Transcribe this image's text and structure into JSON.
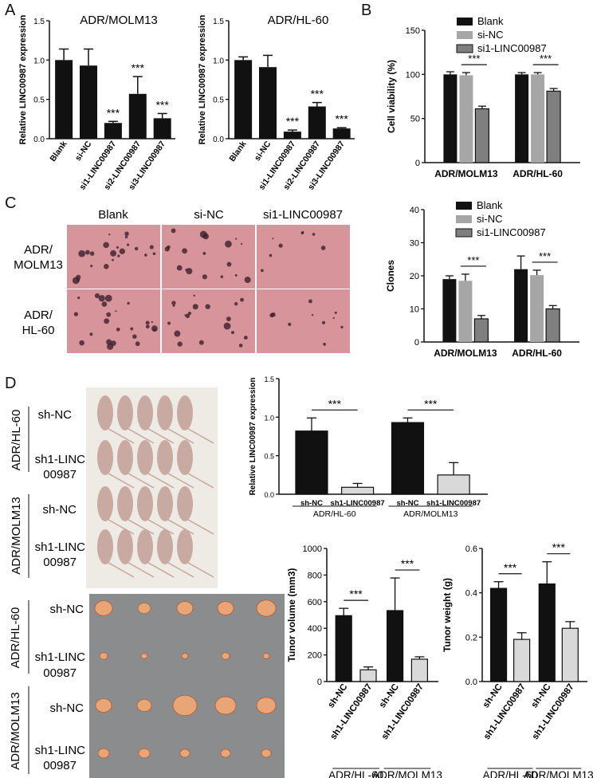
{
  "panels": {
    "A": "A",
    "B": "B",
    "C": "C",
    "D": "D"
  },
  "colors": {
    "black": "#111111",
    "gray": "#a6a6a6",
    "dark_gray": "#7f7f7f",
    "light_gray": "#d9d9d9",
    "petri": "#d7949a",
    "tray": "#8a8c8e",
    "mouse": "#c9aaa3",
    "tumor": "#e8a676"
  },
  "chart_data": [
    {
      "id": "A1",
      "type": "bar",
      "title": "ADR/MOLM13",
      "ylabel": "Relative LINC00987 expression",
      "categories": [
        "Blank",
        "si-NC",
        "si1-LINC00987",
        "si2-LINC00987",
        "si3-LINC00987"
      ],
      "values": [
        1.0,
        0.93,
        0.2,
        0.57,
        0.26
      ],
      "errors": [
        0.14,
        0.21,
        0.02,
        0.22,
        0.06
      ],
      "ylim": [
        0,
        1.5
      ],
      "yticks": [
        "0.0",
        "0.5",
        "1.0",
        "1.5"
      ],
      "annotations": [
        {
          "index": 2,
          "text": "***"
        },
        {
          "index": 3,
          "text": "***"
        },
        {
          "index": 4,
          "text": "***"
        }
      ]
    },
    {
      "id": "A2",
      "type": "bar",
      "title": "ADR/HL-60",
      "ylabel": "Relative LINC00987 expression",
      "categories": [
        "Blank",
        "si-NC",
        "si1-LINC00987",
        "si2-LINC00987",
        "si3-LINC00987"
      ],
      "values": [
        1.0,
        0.91,
        0.09,
        0.41,
        0.13
      ],
      "errors": [
        0.04,
        0.15,
        0.02,
        0.05,
        0.01
      ],
      "ylim": [
        0,
        1.5
      ],
      "yticks": [
        "0.0",
        "0.5",
        "1.0",
        "1.5"
      ],
      "annotations": [
        {
          "index": 2,
          "text": "***"
        },
        {
          "index": 3,
          "text": "***"
        },
        {
          "index": 4,
          "text": "***"
        }
      ]
    },
    {
      "id": "B",
      "type": "bar",
      "ylabel": "Cell viability (%)",
      "categories": [
        "ADR/MOLM13",
        "ADR/HL-60"
      ],
      "series": [
        {
          "name": "Blank",
          "values": [
            100,
            100
          ],
          "errors": [
            3,
            2
          ]
        },
        {
          "name": "si-NC",
          "values": [
            99,
            100
          ],
          "errors": [
            3,
            2
          ]
        },
        {
          "name": "si1-LINC00987",
          "values": [
            61,
            81
          ],
          "errors": [
            3,
            3
          ]
        }
      ],
      "ylim": [
        0,
        150
      ],
      "yticks": [
        "0",
        "50",
        "100",
        "150"
      ],
      "legend": "top-right",
      "annotations": [
        {
          "group": 0,
          "text": "***"
        },
        {
          "group": 1,
          "text": "***"
        }
      ]
    },
    {
      "id": "C",
      "type": "bar",
      "ylabel": "Clones",
      "categories": [
        "ADR/MOLM13",
        "ADR/HL-60"
      ],
      "series": [
        {
          "name": "Blank",
          "values": [
            19,
            22
          ],
          "errors": [
            1,
            4
          ]
        },
        {
          "name": "si-NC",
          "values": [
            18.5,
            20.2
          ],
          "errors": [
            2,
            1.5
          ]
        },
        {
          "name": "si1-LINC00987",
          "values": [
            7,
            10
          ],
          "errors": [
            1,
            1
          ]
        }
      ],
      "ylim": [
        0,
        40
      ],
      "yticks": [
        "0",
        "10",
        "20",
        "30",
        "40"
      ],
      "legend": "top-right",
      "annotations": [
        {
          "group": 0,
          "text": "***"
        },
        {
          "group": 1,
          "text": "***"
        }
      ]
    },
    {
      "id": "D1",
      "type": "bar",
      "ylabel": "Relative LINC00987 expression",
      "categories": [
        "sh-NC",
        "sh1-LINC00987",
        "sh-NC",
        "sh1-LINC00987"
      ],
      "groups": [
        "ADR/HL-60",
        "ADR/MOLM13"
      ],
      "values": [
        0.82,
        0.09,
        0.93,
        0.25
      ],
      "errors": [
        0.17,
        0.05,
        0.06,
        0.16
      ],
      "ylim": [
        0,
        1.5
      ],
      "yticks": [
        "0.0",
        "0.5",
        "1.0",
        "1.5"
      ],
      "annotations": [
        {
          "pair": 0,
          "text": "***"
        },
        {
          "pair": 1,
          "text": "***"
        }
      ]
    },
    {
      "id": "D2",
      "type": "bar",
      "ylabel": "Tunor volume (mm3)",
      "categories": [
        "sh-NC",
        "sh1-LINC00987",
        "sh-NC",
        "sh1-LINC00987"
      ],
      "groups": [
        "ADR/HL-60",
        "ADR/MOLM13"
      ],
      "values": [
        495,
        88,
        533,
        168
      ],
      "errors": [
        55,
        22,
        245,
        18
      ],
      "ylim": [
        0,
        1000
      ],
      "yticks": [
        "0",
        "200",
        "400",
        "600",
        "800",
        "1000"
      ],
      "annotations": [
        {
          "pair": 0,
          "text": "***"
        },
        {
          "pair": 1,
          "text": "***"
        }
      ]
    },
    {
      "id": "D3",
      "type": "bar",
      "ylabel": "Tunor weight (g)",
      "categories": [
        "sh-NC",
        "sh1-LINC00987",
        "sh-NC",
        "sh1-LINC00987"
      ],
      "groups": [
        "ADR/HL-60",
        "ADR/MOLM13"
      ],
      "values": [
        0.42,
        0.19,
        0.44,
        0.24
      ],
      "errors": [
        0.03,
        0.03,
        0.1,
        0.03
      ],
      "ylim": [
        0,
        0.6
      ],
      "yticks": [
        "0.0",
        "0.2",
        "0.4",
        "0.6"
      ],
      "annotations": [
        {
          "pair": 0,
          "text": "***"
        },
        {
          "pair": 1,
          "text": "***"
        }
      ]
    }
  ],
  "colony": {
    "columns": [
      "Blank",
      "si-NC",
      "si1-LINC00987"
    ],
    "rows": [
      {
        "l1": "ADR/",
        "l2": "MOLM13"
      },
      {
        "l1": "ADR/",
        "l2": "HL-60"
      }
    ]
  },
  "mice": {
    "groups": [
      {
        "line": "ADR/HL-60",
        "rows": [
          {
            "l1": "sh-NC",
            "l2": ""
          },
          {
            "l1": "sh1-LINC",
            "l2": "00987"
          }
        ]
      },
      {
        "line": "ADR/MOLM13",
        "rows": [
          {
            "l1": "sh-NC",
            "l2": ""
          },
          {
            "l1": "sh1-LINC",
            "l2": "00987"
          }
        ]
      }
    ]
  },
  "tumors": {
    "groups": [
      {
        "line": "ADR/HL-60",
        "rows": [
          {
            "l1": "sh-NC",
            "l2": ""
          },
          {
            "l1": "sh1-LINC",
            "l2": "00987"
          }
        ]
      },
      {
        "line": "ADR/MOLM13",
        "rows": [
          {
            "l1": "sh-NC",
            "l2": ""
          },
          {
            "l1": "sh1-LINC",
            "l2": "00987"
          }
        ]
      }
    ]
  }
}
